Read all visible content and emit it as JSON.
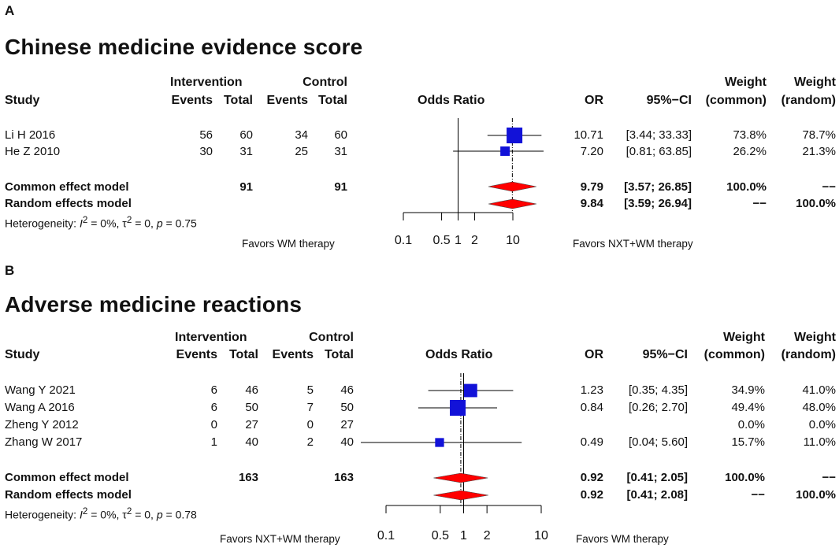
{
  "chart_data": [
    {
      "type": "forest",
      "panel_label": "A",
      "title": "Chinese medicine evidence score",
      "headers": {
        "study": "Study",
        "intervention": "Intervention",
        "control": "Control",
        "events": "Events",
        "total": "Total",
        "plot": "Odds Ratio",
        "or": "OR",
        "ci": "95%−CI",
        "weight": "Weight",
        "weight_common": "(common)",
        "weight_random": "(random)"
      },
      "studies": [
        {
          "name": "Li H 2016",
          "int_events": "56",
          "int_total": "60",
          "ctl_events": "34",
          "ctl_total": "60",
          "or_text": "10.71",
          "ci_text": "[3.44; 33.33]",
          "w_common": "73.8%",
          "w_random": "78.7%",
          "or": 10.71,
          "lower": 3.44,
          "upper": 33.33,
          "weight": 73.8
        },
        {
          "name": "He Z  2010",
          "int_events": "30",
          "int_total": "31",
          "ctl_events": "25",
          "ctl_total": "31",
          "or_text": "7.20",
          "ci_text": "[0.81; 63.85]",
          "w_common": "26.2%",
          "w_random": "21.3%",
          "or": 7.2,
          "lower": 0.81,
          "upper": 63.85,
          "weight": 26.2
        }
      ],
      "common": {
        "label": "Common effect model",
        "int_total": "91",
        "ctl_total": "91",
        "or_text": "9.79",
        "ci_text": "[3.57; 26.85]",
        "w_common": "100.0%",
        "w_random": "−−",
        "or": 9.79,
        "lower": 3.57,
        "upper": 26.85
      },
      "random": {
        "label": "Random effects model",
        "or_text": "9.84",
        "ci_text": "[3.59; 26.94]",
        "w_common": "−−",
        "w_random": "100.0%",
        "or": 9.84,
        "lower": 3.59,
        "upper": 26.94
      },
      "heterogeneity": {
        "prefix": "Heterogeneity: ",
        "i2": "I",
        "i2_sup": "2",
        "i2_val": " = 0%, ",
        "tau": "τ",
        "tau_sup": "2",
        "tau_val": " = 0, ",
        "p": "p",
        "p_val": " = 0.75"
      },
      "axis": {
        "ticks": [
          0.1,
          0.5,
          1,
          2,
          10
        ],
        "tick_labels": [
          "0.1",
          "0.5",
          "1",
          "2",
          "10"
        ],
        "xlim": [
          0.1,
          10
        ]
      },
      "favors_left": "Favors WM therapy",
      "favors_right": "Favors NXT+WM therapy"
    },
    {
      "type": "forest",
      "panel_label": "B",
      "title": "Adverse medicine reactions",
      "headers": {
        "study": "Study",
        "intervention": "Intervention",
        "control": "Control",
        "events": "Events",
        "total": "Total",
        "plot": "Odds Ratio",
        "or": "OR",
        "ci": "95%−CI",
        "weight": "Weight",
        "weight_common": "(common)",
        "weight_random": "(random)"
      },
      "studies": [
        {
          "name": "Wang Y 2021",
          "int_events": "6",
          "int_total": "46",
          "ctl_events": "5",
          "ctl_total": "46",
          "or_text": "1.23",
          "ci_text": "[0.35; 4.35]",
          "w_common": "34.9%",
          "w_random": "41.0%",
          "or": 1.23,
          "lower": 0.35,
          "upper": 4.35,
          "weight": 34.9
        },
        {
          "name": "Wang A 2016",
          "int_events": "6",
          "int_total": "50",
          "ctl_events": "7",
          "ctl_total": "50",
          "or_text": "0.84",
          "ci_text": "[0.26; 2.70]",
          "w_common": "49.4%",
          "w_random": "48.0%",
          "or": 0.84,
          "lower": 0.26,
          "upper": 2.7,
          "weight": 49.4
        },
        {
          "name": "Zheng Y 2012",
          "int_events": "0",
          "int_total": "27",
          "ctl_events": "0",
          "ctl_total": "27",
          "or_text": "",
          "ci_text": "",
          "w_common": "0.0%",
          "w_random": "0.0%",
          "or": null,
          "lower": null,
          "upper": null,
          "weight": 0
        },
        {
          "name": "Zhang W 2017",
          "int_events": "1",
          "int_total": "40",
          "ctl_events": "2",
          "ctl_total": "40",
          "or_text": "0.49",
          "ci_text": "[0.04; 5.60]",
          "w_common": "15.7%",
          "w_random": "11.0%",
          "or": 0.49,
          "lower": 0.04,
          "upper": 5.6,
          "weight": 15.7
        }
      ],
      "common": {
        "label": "Common effect model",
        "int_total": "163",
        "ctl_total": "163",
        "or_text": "0.92",
        "ci_text": "[0.41; 2.05]",
        "w_common": "100.0%",
        "w_random": "−−",
        "or": 0.92,
        "lower": 0.41,
        "upper": 2.05
      },
      "random": {
        "label": "Random effects model",
        "or_text": "0.92",
        "ci_text": "[0.41; 2.08]",
        "w_common": "−−",
        "w_random": "100.0%",
        "or": 0.92,
        "lower": 0.41,
        "upper": 2.08
      },
      "heterogeneity": {
        "prefix": "Heterogeneity: ",
        "i2": "I",
        "i2_sup": "2",
        "i2_val": " = 0%, ",
        "tau": "τ",
        "tau_sup": "2",
        "tau_val": " = 0, ",
        "p": "p",
        "p_val": " = 0.78"
      },
      "axis": {
        "ticks": [
          0.1,
          0.5,
          1,
          2,
          10
        ],
        "tick_labels": [
          "0.1",
          "0.5",
          "1",
          "2",
          "10"
        ],
        "xlim": [
          0.1,
          10
        ]
      },
      "favors_left": "Favors NXT+WM therapy",
      "favors_right": "Favors WM therapy"
    }
  ],
  "colors": {
    "square": "#1212d8",
    "diamond": "#ff0000",
    "line": "#000000"
  }
}
